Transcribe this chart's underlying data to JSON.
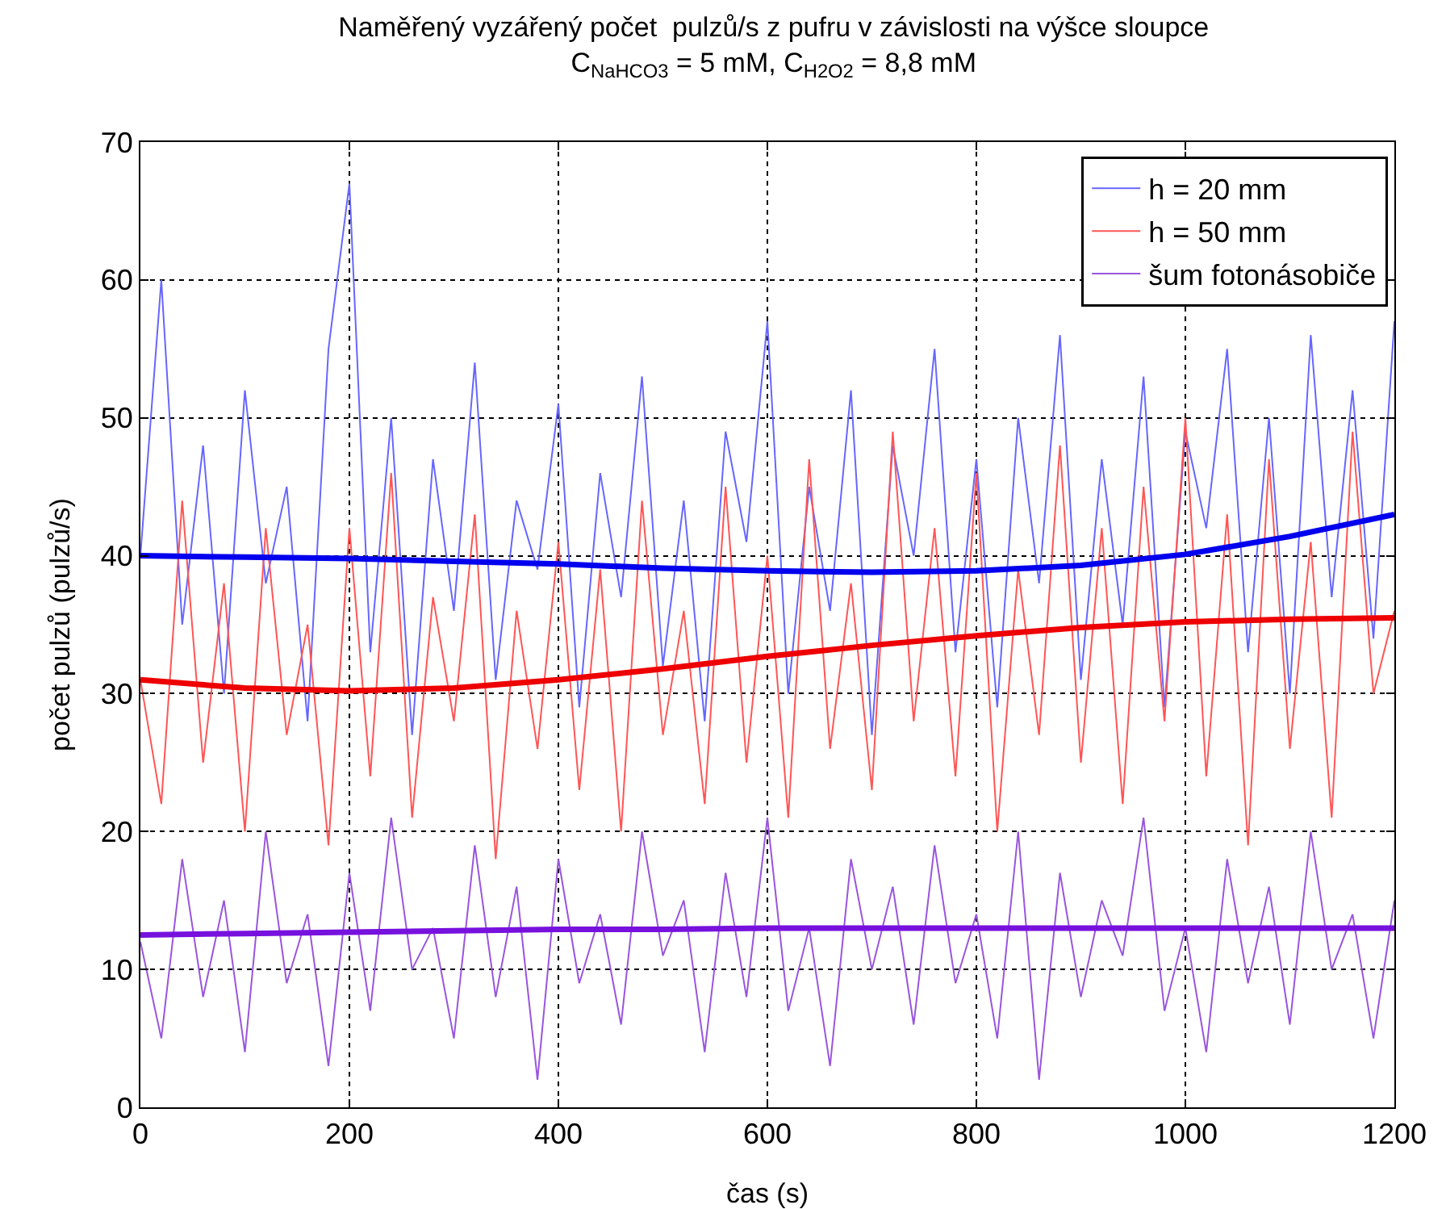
{
  "chart_data": {
    "type": "line",
    "title": "Naměřený vyzářený počet  pulzů/s z pufru v závislosti na výšce sloupce\nC$_{NaHCO3}$ = 5 mM, C$_{H2O2}$ = 8,8 mM",
    "xlabel": "čas (s)",
    "ylabel": "počet pulzů (pulzů/s)",
    "x": [
      0,
      20,
      40,
      60,
      80,
      100,
      120,
      140,
      160,
      180,
      200,
      220,
      240,
      260,
      280,
      300,
      320,
      340,
      360,
      380,
      400,
      420,
      440,
      460,
      480,
      500,
      520,
      540,
      560,
      580,
      600,
      620,
      640,
      660,
      680,
      700,
      720,
      740,
      760,
      780,
      800,
      820,
      840,
      860,
      880,
      900,
      920,
      940,
      960,
      980,
      1000,
      1020,
      1040,
      1060,
      1080,
      1100,
      1120,
      1140,
      1160,
      1180,
      1200
    ],
    "series": [
      {
        "name": "h = 20 mm",
        "color": "#6666ff",
        "values": [
          40,
          60,
          35,
          48,
          30,
          52,
          38,
          45,
          28,
          55,
          67,
          33,
          50,
          27,
          47,
          36,
          54,
          31,
          44,
          39,
          51,
          29,
          46,
          37,
          53,
          32,
          44,
          28,
          49,
          41,
          57,
          30,
          45,
          36,
          52,
          27,
          48,
          40,
          55,
          33,
          47,
          29,
          50,
          38,
          56,
          31,
          47,
          35,
          53,
          29,
          49,
          42,
          55,
          33,
          50,
          30,
          56,
          37,
          52,
          34,
          57
        ]
      },
      {
        "name": "h = 50 mm",
        "color": "#ff5555",
        "values": [
          31,
          22,
          44,
          25,
          38,
          20,
          42,
          27,
          35,
          19,
          42,
          24,
          46,
          21,
          37,
          28,
          43,
          18,
          36,
          26,
          41,
          23,
          39,
          20,
          44,
          27,
          36,
          22,
          45,
          25,
          40,
          21,
          47,
          26,
          38,
          23,
          49,
          28,
          42,
          24,
          46,
          20,
          39,
          27,
          48,
          25,
          42,
          22,
          45,
          28,
          50,
          24,
          43,
          19,
          47,
          26,
          41,
          21,
          49,
          30,
          36
        ]
      },
      {
        "name": "šum fotonásobiče",
        "color": "#9955dd",
        "values": [
          12,
          5,
          18,
          8,
          15,
          4,
          20,
          9,
          14,
          3,
          17,
          7,
          21,
          10,
          13,
          5,
          19,
          8,
          16,
          2,
          18,
          9,
          14,
          6,
          20,
          11,
          15,
          4,
          17,
          8,
          21,
          7,
          13,
          3,
          18,
          10,
          16,
          6,
          19,
          9,
          14,
          5,
          20,
          2,
          17,
          8,
          15,
          11,
          21,
          7,
          13,
          4,
          18,
          9,
          16,
          6,
          20,
          10,
          14,
          5,
          15
        ]
      },
      {
        "color": "#0000ee",
        "x": [
          0,
          100,
          200,
          300,
          400,
          500,
          600,
          700,
          800,
          900,
          1000,
          1100,
          1200
        ],
        "values": [
          40,
          39.9,
          39.8,
          39.6,
          39.4,
          39.1,
          38.9,
          38.8,
          38.9,
          39.3,
          40.1,
          41.4,
          43
        ]
      },
      {
        "color": "#ee0000",
        "x": [
          0,
          100,
          200,
          300,
          400,
          500,
          600,
          700,
          800,
          900,
          1000,
          1100,
          1200
        ],
        "values": [
          31,
          30.4,
          30.2,
          30.4,
          31,
          31.8,
          32.7,
          33.5,
          34.2,
          34.8,
          35.2,
          35.4,
          35.5
        ]
      },
      {
        "color": "#7711dd",
        "x": [
          0,
          100,
          200,
          300,
          400,
          500,
          600,
          700,
          800,
          900,
          1000,
          1100,
          1200
        ],
        "values": [
          12.5,
          12.6,
          12.7,
          12.8,
          12.9,
          12.9,
          13,
          13,
          13,
          13,
          13,
          13,
          13
        ]
      }
    ],
    "xlim": [
      0,
      1200
    ],
    "xticks": [
      0,
      200,
      400,
      600,
      800,
      1000,
      1200
    ],
    "ylim": [
      0,
      70
    ],
    "yticks": [
      0,
      10,
      20,
      30,
      40,
      50,
      60,
      70
    ],
    "grid": true,
    "legend": "top right",
    "marker": "none",
    "line_style": "solid"
  }
}
